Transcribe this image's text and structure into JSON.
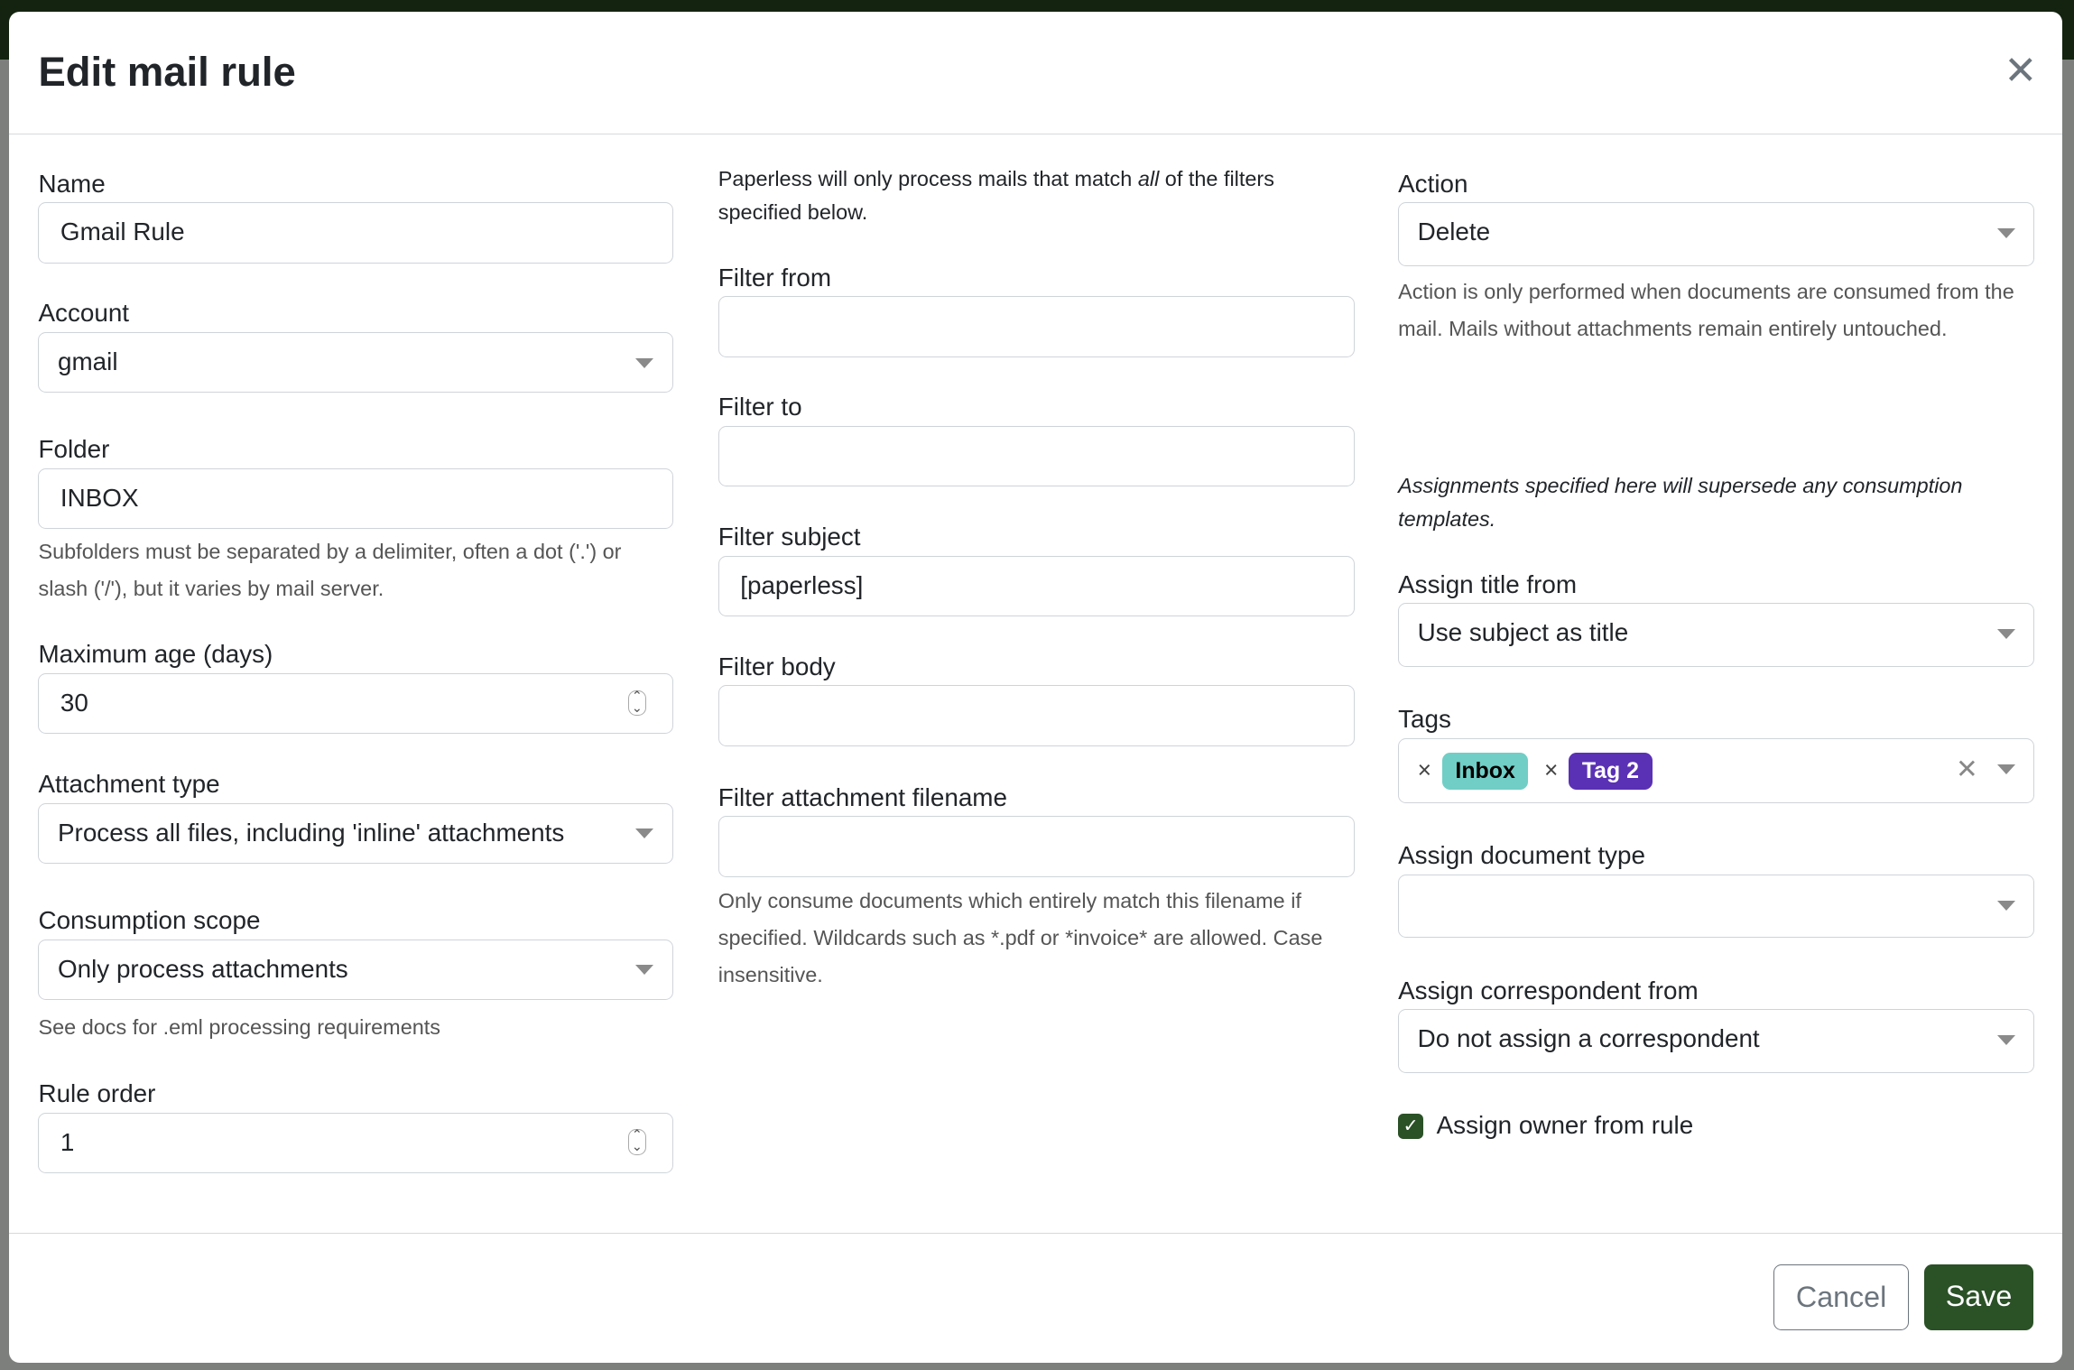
{
  "dialog": {
    "title": "Edit mail rule"
  },
  "col1": {
    "name_label": "Name",
    "name_value": "Gmail Rule",
    "account_label": "Account",
    "account_value": "gmail",
    "folder_label": "Folder",
    "folder_value": "INBOX",
    "folder_help": "Subfolders must be separated by a delimiter, often a dot ('.') or slash ('/'), but it varies by mail server.",
    "max_age_label": "Maximum age (days)",
    "max_age_value": "30",
    "attachment_type_label": "Attachment type",
    "attachment_type_value": "Process all files, including 'inline' attachments",
    "scope_label": "Consumption scope",
    "scope_value": "Only process attachments",
    "scope_help": "See docs for .eml processing requirements",
    "order_label": "Rule order",
    "order_value": "1"
  },
  "col2": {
    "intro_pre": "Paperless will only process mails that match ",
    "intro_em": "all",
    "intro_post": " of the filters specified below.",
    "from_label": "Filter from",
    "from_value": "",
    "to_label": "Filter to",
    "to_value": "",
    "subject_label": "Filter subject",
    "subject_value": "[paperless]",
    "body_label": "Filter body",
    "body_value": "",
    "filename_label": "Filter attachment filename",
    "filename_value": "",
    "filename_help": "Only consume documents which entirely match this filename if specified. Wildcards such as *.pdf or *invoice* are allowed. Case insensitive."
  },
  "col3": {
    "action_label": "Action",
    "action_value": "Delete",
    "action_help": "Action is only performed when documents are consumed from the mail. Mails without attachments remain entirely untouched.",
    "assign_note": "Assignments specified here will supersede any consumption templates.",
    "title_label": "Assign title from",
    "title_value": "Use subject as title",
    "tags_label": "Tags",
    "tags": [
      {
        "label": "Inbox",
        "bg": "#71cec6",
        "fg": "#000000"
      },
      {
        "label": "Tag 2",
        "bg": "#5a31b4",
        "fg": "#ffffff"
      }
    ],
    "doctype_label": "Assign document type",
    "doctype_value": "",
    "corr_label": "Assign correspondent from",
    "corr_value": "Do not assign a correspondent",
    "owner_label": "Assign owner from rule",
    "owner_checked": true
  },
  "footer": {
    "cancel": "Cancel",
    "save": "Save"
  },
  "colors": {
    "primary": "#2b5127",
    "topbar": "#13230f"
  }
}
